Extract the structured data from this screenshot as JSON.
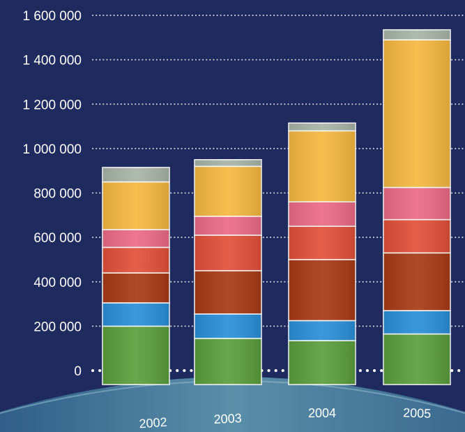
{
  "chart_data": {
    "type": "bar",
    "stacked": true,
    "categories": [
      "2002",
      "2003",
      "2004",
      "2005"
    ],
    "series": [
      {
        "color": "#5a9e3c",
        "values": [
          200000,
          145000,
          135000,
          165000
        ]
      },
      {
        "color": "#2a8fd8",
        "values": [
          105000,
          110000,
          90000,
          105000
        ]
      },
      {
        "color": "#a83a16",
        "values": [
          135000,
          195000,
          275000,
          260000
        ]
      },
      {
        "color": "#e2503a",
        "values": [
          115000,
          160000,
          150000,
          150000
        ]
      },
      {
        "color": "#ec6a85",
        "values": [
          80000,
          85000,
          110000,
          145000
        ]
      },
      {
        "color": "#f5b840",
        "values": [
          215000,
          225000,
          320000,
          665000
        ]
      },
      {
        "color": "#a8b4a8",
        "values": [
          65000,
          30000,
          35000,
          45000
        ]
      }
    ],
    "ylim": [
      0,
      1600000
    ],
    "yticks": [
      0,
      200000,
      400000,
      600000,
      800000,
      1000000,
      1200000,
      1400000,
      1600000
    ],
    "ytick_labels": [
      "0",
      "200 000",
      "400 000",
      "600 000",
      "800 000",
      "1 000 000",
      "1 200 000",
      "1 400 000",
      "1 600 000"
    ],
    "grid": true,
    "background": "#1f2a5e",
    "gridline_color": "#ffffff"
  }
}
